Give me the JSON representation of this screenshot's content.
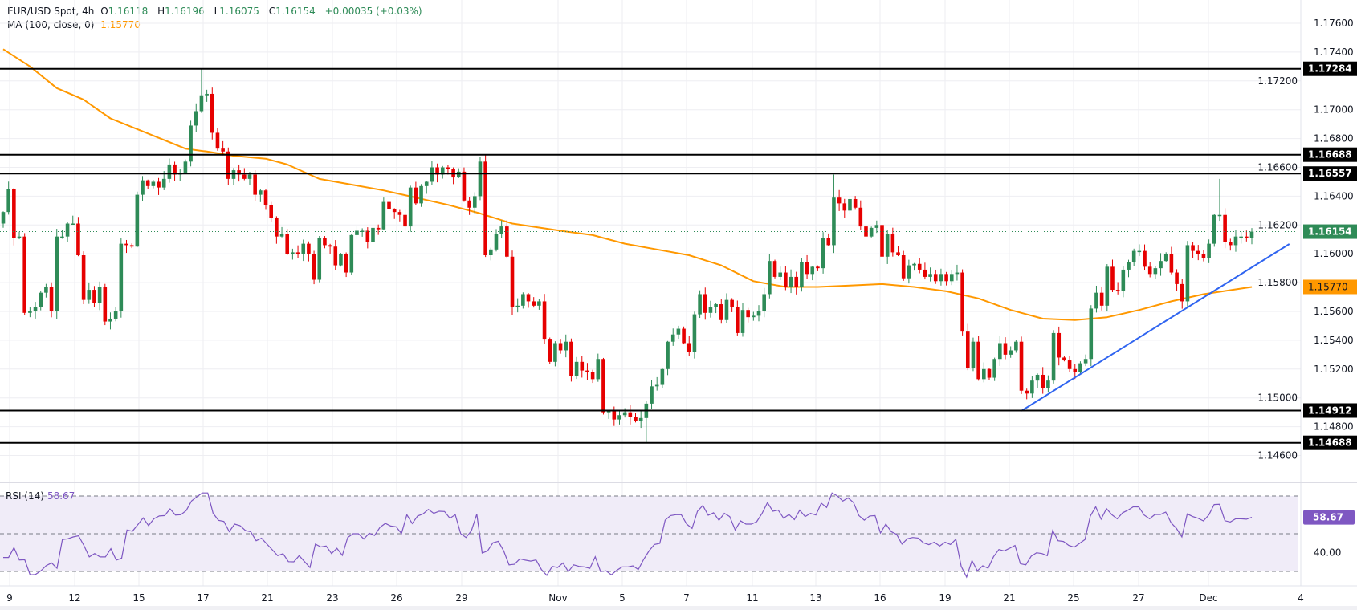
{
  "header": {
    "symbol": "EUR/USD Spot, 4h",
    "open_label": "O",
    "open": "1.16118",
    "high_label": "H",
    "high": "1.16196",
    "low_label": "L",
    "low": "1.16075",
    "close_label": "C",
    "close": "1.16154",
    "change": "+0.00035 (+0.03%)",
    "ma_label": "MA (100, close, 0)",
    "ma_value": "1.15770"
  },
  "rsi_header": {
    "label": "RSI (14)",
    "value": "58.67"
  },
  "colors": {
    "up": "#2e8b57",
    "down": "#e60000",
    "ma": "#ff9800",
    "trendline": "#2f64f0",
    "rsi": "#7e57c2",
    "rsi_band": "#f0ecf8",
    "level": "#000000",
    "grid": "#eeeef2"
  },
  "chart_data": [
    {
      "type": "candlestick",
      "title": "EUR/USD Spot, 4h",
      "ylim": [
        1.1455,
        1.1775
      ],
      "y_ticks": [
        "1.14600",
        "1.14800",
        "1.15000",
        "1.15200",
        "1.15400",
        "1.15600",
        "1.15800",
        "1.16000",
        "1.16200",
        "1.16400",
        "1.16600",
        "1.16800",
        "1.17000",
        "1.17200",
        "1.17400",
        "1.17600"
      ],
      "x_tick_labels": [
        "9",
        "12",
        "15",
        "17",
        "21",
        "23",
        "26",
        "29",
        "Nov",
        "5",
        "7",
        "11",
        "13",
        "16",
        "19",
        "21",
        "25",
        "27",
        "Dec",
        "4"
      ],
      "grid": true,
      "closes": [
        1.1629,
        1.1645,
        1.1611,
        1.1612,
        1.1559,
        1.156,
        1.1563,
        1.1573,
        1.1577,
        1.156,
        1.1612,
        1.1612,
        1.1621,
        1.1621,
        1.1599,
        1.1568,
        1.1575,
        1.1566,
        1.1577,
        1.1553,
        1.1555,
        1.156,
        1.1607,
        1.1606,
        1.1605,
        1.1641,
        1.1651,
        1.1647,
        1.165,
        1.1646,
        1.1652,
        1.1662,
        1.1655,
        1.1656,
        1.1664,
        1.1689,
        1.1699,
        1.171,
        1.1711,
        1.1684,
        1.1673,
        1.1671,
        1.1652,
        1.1658,
        1.1655,
        1.1652,
        1.1655,
        1.1641,
        1.1644,
        1.1634,
        1.1625,
        1.1612,
        1.1614,
        1.16,
        1.1601,
        1.16,
        1.1607,
        1.16,
        1.1582,
        1.1611,
        1.1606,
        1.1605,
        1.1592,
        1.16,
        1.1587,
        1.1613,
        1.1616,
        1.1616,
        1.1608,
        1.1618,
        1.1617,
        1.1636,
        1.1631,
        1.1629,
        1.1627,
        1.1619,
        1.1646,
        1.1635,
        1.1647,
        1.165,
        1.166,
        1.1655,
        1.166,
        1.1659,
        1.1653,
        1.1657,
        1.1637,
        1.1632,
        1.164,
        1.1664,
        1.1599,
        1.1603,
        1.1614,
        1.1619,
        1.1598,
        1.1563,
        1.1564,
        1.1572,
        1.1567,
        1.1564,
        1.1567,
        1.1541,
        1.1525,
        1.1538,
        1.1533,
        1.1539,
        1.1515,
        1.1525,
        1.1519,
        1.1518,
        1.1513,
        1.1527,
        1.149,
        1.1491,
        1.1485,
        1.1488,
        1.149,
        1.1487,
        1.1484,
        1.1486,
        1.1496,
        1.1508,
        1.1509,
        1.152,
        1.1539,
        1.1544,
        1.1548,
        1.1538,
        1.1532,
        1.1558,
        1.1572,
        1.1559,
        1.1563,
        1.1565,
        1.1554,
        1.1568,
        1.1563,
        1.1545,
        1.1561,
        1.1556,
        1.1557,
        1.156,
        1.1572,
        1.1595,
        1.1584,
        1.1587,
        1.1577,
        1.1584,
        1.1577,
        1.1594,
        1.1586,
        1.1591,
        1.159,
        1.1611,
        1.1606,
        1.1639,
        1.1635,
        1.163,
        1.1638,
        1.1632,
        1.1619,
        1.1612,
        1.1618,
        1.162,
        1.1598,
        1.1614,
        1.1601,
        1.1599,
        1.1583,
        1.1592,
        1.1593,
        1.1589,
        1.1584,
        1.1586,
        1.1581,
        1.1586,
        1.1581,
        1.1586,
        1.1587,
        1.1546,
        1.1521,
        1.1539,
        1.1513,
        1.152,
        1.1514,
        1.1527,
        1.1538,
        1.153,
        1.1533,
        1.1539,
        1.1505,
        1.1503,
        1.1512,
        1.1516,
        1.1507,
        1.1512,
        1.1545,
        1.1528,
        1.1526,
        1.152,
        1.1518,
        1.1524,
        1.1527,
        1.1562,
        1.1573,
        1.1564,
        1.1591,
        1.1575,
        1.1574,
        1.1589,
        1.1594,
        1.1602,
        1.1602,
        1.1591,
        1.1586,
        1.159,
        1.1595,
        1.16,
        1.1587,
        1.1579,
        1.1567,
        1.1606,
        1.1602,
        1.16,
        1.1597,
        1.1607,
        1.1627,
        1.1627,
        1.1608,
        1.1606,
        1.1612,
        1.1612,
        1.1611,
        1.16154
      ],
      "notable_wicks": [
        {
          "candle": 37,
          "high": 1.17284
        },
        {
          "candle": 89,
          "high": 1.1667
        },
        {
          "candle": 120,
          "low": 1.14688
        },
        {
          "candle": 155,
          "high": 1.1655
        },
        {
          "candle": 227,
          "high": 1.1652
        }
      ],
      "last_price": 1.16154,
      "ma100": {
        "label": "MA (100, close, 0)",
        "last": 1.1577,
        "points": [
          [
            0,
            1.1742
          ],
          [
            5,
            1.173
          ],
          [
            10,
            1.1715
          ],
          [
            15,
            1.1707
          ],
          [
            20,
            1.1694
          ],
          [
            26,
            1.1685
          ],
          [
            34,
            1.1673
          ],
          [
            38,
            1.1671
          ],
          [
            43,
            1.1668
          ],
          [
            49,
            1.1666
          ],
          [
            53,
            1.1662
          ],
          [
            59,
            1.1652
          ],
          [
            65,
            1.1648
          ],
          [
            71,
            1.1644
          ],
          [
            77,
            1.1639
          ],
          [
            83,
            1.1634
          ],
          [
            89,
            1.1628
          ],
          [
            95,
            1.1621
          ],
          [
            104,
            1.1616
          ],
          [
            110,
            1.1613
          ],
          [
            116,
            1.1607
          ],
          [
            122,
            1.1603
          ],
          [
            128,
            1.1599
          ],
          [
            134,
            1.1592
          ],
          [
            140,
            1.1581
          ],
          [
            146,
            1.1577
          ],
          [
            152,
            1.1577
          ],
          [
            158,
            1.1578
          ],
          [
            164,
            1.1579
          ],
          [
            170,
            1.1577
          ],
          [
            176,
            1.1574
          ],
          [
            182,
            1.1569
          ],
          [
            188,
            1.1561
          ],
          [
            194,
            1.1555
          ],
          [
            200,
            1.1554
          ],
          [
            206,
            1.1556
          ],
          [
            212,
            1.1561
          ],
          [
            218,
            1.1567
          ],
          [
            224,
            1.1572
          ],
          [
            233,
            1.1577
          ]
        ]
      },
      "horizontal_levels": [
        1.17284,
        1.16688,
        1.16557,
        1.14912,
        1.14688
      ],
      "level_labels": [
        "1.17284",
        "1.16688",
        "1.16557",
        "1.14912",
        "1.14688"
      ],
      "price_label": "1.16154",
      "ma_price_label": "1.15770",
      "trendline": [
        [
          190,
          1.1491
        ],
        [
          240,
          1.16068
        ]
      ]
    },
    {
      "type": "line",
      "title": "RSI (14)",
      "ylim": [
        25,
        75
      ],
      "bands": [
        30,
        50,
        70
      ],
      "y_ticks": [
        "40.00"
      ],
      "value_label": "58.67",
      "values": [
        37.4,
        37.4,
        42.6,
        36.1,
        36.2,
        28.2,
        28.4,
        30.3,
        33.1,
        34.5,
        31.7,
        46.9,
        47.3,
        48.3,
        48.9,
        43.8,
        37.7,
        39.5,
        37.7,
        37.7,
        42.1,
        36.0,
        37.0,
        52.0,
        51.3,
        54.8,
        58.4,
        54.3,
        57.9,
        59.4,
        59.6,
        63.2,
        59.9,
        60.1,
        62.3,
        67.4,
        69.6,
        71.6,
        71.6,
        60.8,
        57.1,
        56.5,
        51.1,
        55.1,
        54.3,
        51.7,
        51.0,
        46.3,
        47.6,
        44.5,
        41.5,
        38.4,
        39.4,
        35.2,
        35.1,
        38.4,
        35.2,
        32.1,
        44.5,
        43.0,
        43.5,
        39.5,
        42.3,
        38.5,
        48.0,
        50.0,
        50.0,
        47.2,
        50.3,
        49.1,
        53.4,
        55.5,
        54.1,
        53.7,
        50.1,
        60.1,
        55.4,
        59.4,
        60.5,
        62.9,
        60.8,
        61.9,
        61.8,
        58.2,
        60.1,
        50.1,
        48.0,
        51.6,
        60.4,
        39.8,
        40.9,
        45.2,
        46.0,
        40.9,
        33.5,
        33.8,
        36.7,
        36.0,
        35.5,
        36.1,
        31.0,
        27.9,
        32.7,
        32.1,
        34.5,
        29.9,
        33.5,
        32.7,
        32.4,
        31.6,
        37.8,
        29.9,
        30.3,
        28.2,
        30.6,
        32.4,
        32.4,
        33.0,
        31.0,
        36.4,
        40.9,
        44.3,
        44.9,
        57.2,
        59.6,
        60.1,
        60.1,
        55.1,
        52.8,
        61.9,
        65.0,
        59.8,
        61.1,
        57.1,
        60.8,
        59.1,
        52.0,
        56.8,
        55.1,
        55.1,
        56.4,
        60.8,
        66.5,
        61.9,
        62.5,
        58.2,
        60.2,
        57.5,
        62.5,
        59.1,
        60.8,
        59.9,
        66.2,
        63.9,
        71.6,
        70.0,
        67.3,
        69.0,
        66.5,
        59.6,
        57.2,
        59.4,
        59.6,
        50.4,
        55.1,
        51.1,
        49.7,
        44.5,
        47.3,
        48.0,
        47.7,
        45.2,
        44.2,
        45.5,
        43.5,
        45.5,
        44.3,
        47.0,
        32.7,
        27.0,
        35.8,
        30.3,
        33.0,
        31.7,
        37.8,
        41.6,
        40.9,
        42.3,
        43.8,
        34.1,
        33.5,
        38.1,
        39.9,
        39.5,
        38.4,
        51.7,
        46.3,
        45.9,
        43.8,
        42.9,
        44.9,
        46.9,
        59.4,
        64.3,
        57.7,
        63.3,
        60.1,
        57.9,
        61.1,
        62.5,
        64.3,
        64.2,
        59.9,
        57.9,
        60.2,
        60.2,
        61.5,
        55.8,
        52.8,
        48.3,
        60.5,
        59.1,
        58.2,
        56.8,
        59.9,
        65.5,
        65.6,
        56.9,
        56.2,
        57.9,
        57.9,
        57.7,
        58.67
      ]
    }
  ]
}
